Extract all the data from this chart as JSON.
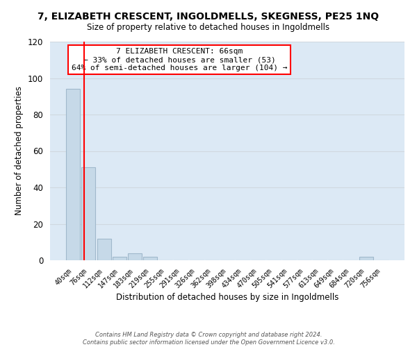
{
  "title": "7, ELIZABETH CRESCENT, INGOLDMELLS, SKEGNESS, PE25 1NQ",
  "subtitle": "Size of property relative to detached houses in Ingoldmells",
  "xlabel": "Distribution of detached houses by size in Ingoldmells",
  "ylabel": "Number of detached properties",
  "footer_line1": "Contains HM Land Registry data © Crown copyright and database right 2024.",
  "footer_line2": "Contains public sector information licensed under the Open Government Licence v3.0.",
  "bar_labels": [
    "40sqm",
    "76sqm",
    "112sqm",
    "147sqm",
    "183sqm",
    "219sqm",
    "255sqm",
    "291sqm",
    "326sqm",
    "362sqm",
    "398sqm",
    "434sqm",
    "470sqm",
    "505sqm",
    "541sqm",
    "577sqm",
    "613sqm",
    "649sqm",
    "684sqm",
    "720sqm",
    "756sqm"
  ],
  "bar_values": [
    94,
    51,
    12,
    2,
    4,
    2,
    0,
    0,
    0,
    0,
    0,
    0,
    0,
    0,
    0,
    0,
    0,
    0,
    0,
    2,
    0
  ],
  "bar_color": "#c6d9e8",
  "bar_edge_color": "#a0b8cc",
  "ylim": [
    0,
    120
  ],
  "yticks": [
    0,
    20,
    40,
    60,
    80,
    100,
    120
  ],
  "grid_color": "#d0d8e0",
  "background_color": "#dce9f5",
  "annotation_line1": "7 ELIZABETH CRESCENT: 66sqm",
  "annotation_line2": "← 33% of detached houses are smaller (53)",
  "annotation_line3": "64% of semi-detached houses are larger (104) →"
}
